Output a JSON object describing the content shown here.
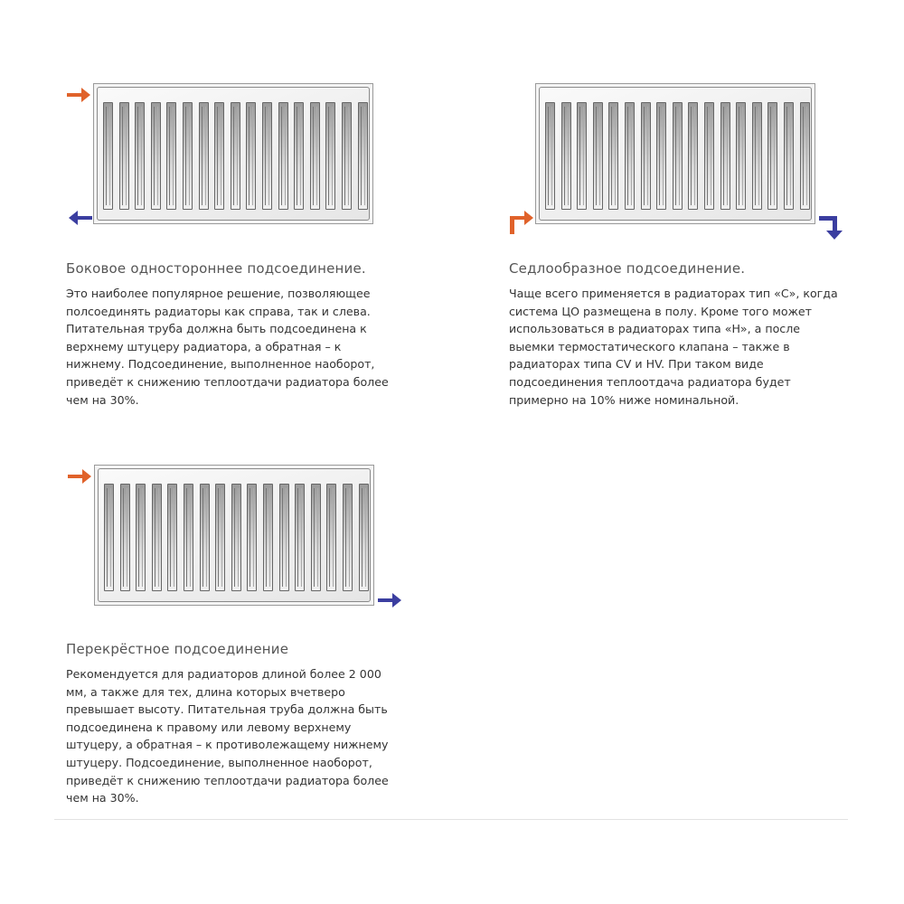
{
  "colors": {
    "supply": "#e0622a",
    "return": "#3b3ea0"
  },
  "sections": [
    {
      "icon": "radiator-side-connection-icon",
      "title": "Боковое одностороннее подсоединение.",
      "lines": [
        "Это наиболее популярное решение, позволяющее",
        "полсоединять радиаторы как справа, так и слева.",
        "Питательная труба должна быть подсоединена к",
        "верхнему штуцеру радиатора, а обратная – к",
        "нижнему. Подсоединение, выполненное наоборот,",
        "приведёт к снижению теплоотдачи радиатора более",
        "чем на 30%."
      ]
    },
    {
      "icon": "radiator-saddle-connection-icon",
      "title": "Седлообразное подсоединение.",
      "lines": [
        "Чаще всего применяется в радиаторах тип «С», когда",
        "система ЦО размещена в полу. Кроме того может",
        "использоваться в радиаторах типа «Н», а после",
        "выемки термостатического клапана – также в",
        "радиаторах типа CV и HV. При таком виде",
        "подсоединения теплоотдача радиатора будет",
        "примерно на 10% ниже номинальной."
      ]
    },
    {
      "icon": "radiator-cross-connection-icon",
      "title": "Перекрёстное подсоединение",
      "lines": [
        "Рекомендуется для радиаторов длиной более 2 000",
        "мм, а также для тех, длина которых вчетверо",
        "превышает высоту. Питательная труба должна быть",
        "подсоединена к правому или левому верхнему",
        "штуцеру, а обратная – к противолежащему нижнему",
        "штуцеру. Подсоединение, выполненное наоборот,",
        "приведёт к снижению теплоотдачи радиатора более",
        "чем на 30%."
      ]
    }
  ]
}
